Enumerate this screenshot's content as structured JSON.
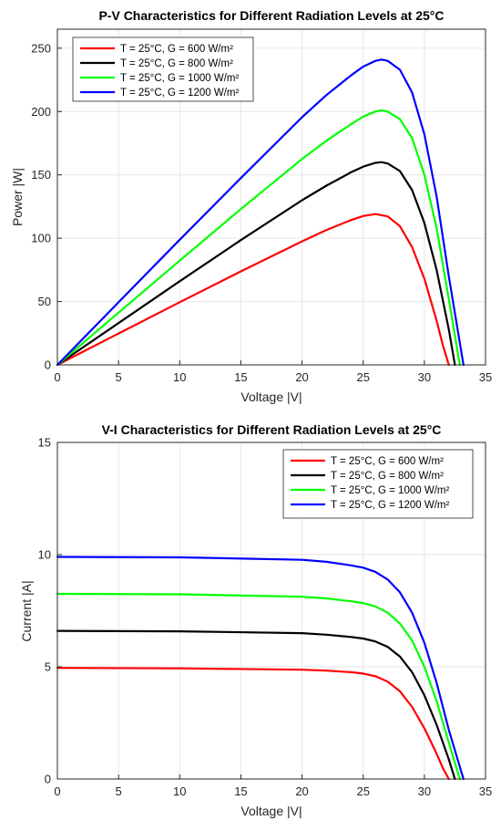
{
  "chart_data": [
    {
      "type": "line",
      "title": "P-V Characteristics for Different Radiation Levels at 25°C",
      "xlabel": "Voltage |V|",
      "ylabel": "Power |W|",
      "xlim": [
        0,
        35
      ],
      "ylim": [
        0,
        265
      ],
      "xticks": [
        0,
        5,
        10,
        15,
        20,
        25,
        30,
        35
      ],
      "yticks": [
        0,
        50,
        100,
        150,
        200,
        250
      ],
      "grid": true,
      "legend_position": "top-left",
      "series": [
        {
          "name": "T = 25°C, G = 600 W/m²",
          "color": "#ff0000",
          "x": [
            0,
            5,
            10,
            15,
            20,
            22,
            24,
            25,
            26,
            27,
            28,
            29,
            30,
            31,
            31.5,
            32.0
          ],
          "y": [
            0,
            24.8,
            49.5,
            73.8,
            97.5,
            106.5,
            114.3,
            117.5,
            119.0,
            117.2,
            109.5,
            93,
            68,
            35,
            16,
            0
          ]
        },
        {
          "name": "T = 25°C, G = 800 W/m²",
          "color": "#000000",
          "x": [
            0,
            5,
            10,
            15,
            20,
            22,
            24,
            25,
            26,
            26.5,
            27,
            28,
            29,
            30,
            31,
            32,
            32.5
          ],
          "y": [
            0,
            33,
            66,
            98.5,
            130,
            141.5,
            152,
            156.5,
            159.5,
            160,
            159,
            153,
            138,
            112,
            75,
            28,
            0
          ]
        },
        {
          "name": "T = 25°C, G = 1000 W/m²",
          "color": "#00ff00",
          "x": [
            0,
            5,
            10,
            15,
            20,
            22,
            24,
            25,
            26,
            26.5,
            27,
            28,
            29,
            30,
            31,
            32,
            32.9
          ],
          "y": [
            0,
            41.2,
            82.3,
            123,
            162.5,
            177,
            190,
            196,
            200,
            201,
            200,
            194,
            179,
            150,
            108,
            52,
            0
          ]
        },
        {
          "name": "T = 25°C, G = 1200 W/m²",
          "color": "#0000ff",
          "x": [
            0,
            5,
            10,
            15,
            20,
            22,
            24,
            25,
            26,
            26.5,
            27,
            28,
            29,
            30,
            31,
            32,
            33.2
          ],
          "y": [
            0,
            49.4,
            98.8,
            147.5,
            195.5,
            213,
            228.5,
            235.5,
            240,
            241,
            240,
            233,
            215,
            182,
            133,
            70,
            0
          ]
        }
      ]
    },
    {
      "type": "line",
      "title": "V-I Characteristics for Different Radiation Levels at 25°C",
      "xlabel": "Voltage |V|",
      "ylabel": "Current |A|",
      "xlim": [
        0,
        35
      ],
      "ylim": [
        0,
        15
      ],
      "xticks": [
        0,
        5,
        10,
        15,
        20,
        25,
        30,
        35
      ],
      "yticks": [
        0,
        5,
        10,
        15
      ],
      "grid": true,
      "legend_position": "top-right",
      "series": [
        {
          "name": "T = 25°C, G = 600 W/m²",
          "color": "#ff0000",
          "x": [
            0,
            10,
            20,
            22,
            24,
            25,
            26,
            27,
            28,
            29,
            30,
            31,
            31.5,
            32.0
          ],
          "y": [
            4.95,
            4.93,
            4.87,
            4.83,
            4.76,
            4.7,
            4.58,
            4.34,
            3.91,
            3.21,
            2.26,
            1.13,
            0.5,
            0
          ]
        },
        {
          "name": "T = 25°C, G = 800 W/m²",
          "color": "#000000",
          "x": [
            0,
            10,
            20,
            22,
            24,
            25,
            26,
            27,
            28,
            29,
            30,
            31,
            32,
            32.5
          ],
          "y": [
            6.6,
            6.58,
            6.5,
            6.43,
            6.33,
            6.26,
            6.13,
            5.89,
            5.46,
            4.76,
            3.73,
            2.42,
            0.88,
            0
          ]
        },
        {
          "name": "T = 25°C, G = 1000 W/m²",
          "color": "#00ff00",
          "x": [
            0,
            10,
            20,
            22,
            24,
            25,
            26,
            27,
            28,
            29,
            30,
            31,
            32,
            32.9
          ],
          "y": [
            8.25,
            8.23,
            8.12,
            8.05,
            7.92,
            7.84,
            7.69,
            7.41,
            6.93,
            6.17,
            5.0,
            3.48,
            1.62,
            0
          ]
        },
        {
          "name": "T = 25°C, G = 1200 W/m²",
          "color": "#0000ff",
          "x": [
            0,
            10,
            20,
            22,
            24,
            25,
            26,
            27,
            28,
            29,
            30,
            31,
            32,
            33.2
          ],
          "y": [
            9.9,
            9.88,
            9.77,
            9.68,
            9.52,
            9.42,
            9.23,
            8.89,
            8.32,
            7.41,
            6.07,
            4.29,
            2.19,
            0
          ]
        }
      ]
    }
  ]
}
